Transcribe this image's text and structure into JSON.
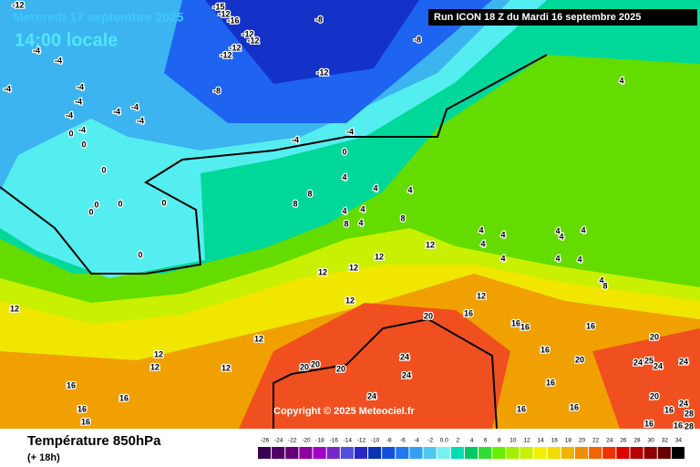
{
  "header": {
    "date": "Mercredi 17 septembre 2025",
    "time": "14:00 locale",
    "run": "Run ICON 18 Z du Mardi 16 septembre 2025"
  },
  "copyright": "Copyright © 2025 Meteociel.fr",
  "footer": {
    "title": "Température 850hPa",
    "lead": "(+ 18h)"
  },
  "map_labels": [
    -12,
    -15,
    -12,
    -16,
    -8,
    -12,
    -12,
    -12,
    -12,
    -8,
    -12,
    -8,
    -4,
    -4,
    -4,
    -4,
    -4,
    -4,
    -4,
    -4,
    -4,
    -4,
    0,
    0,
    0,
    -4,
    -4,
    0,
    4,
    4,
    8,
    8,
    4,
    4,
    4,
    4,
    4,
    8,
    8,
    0,
    0,
    0,
    0,
    0,
    12,
    4,
    4,
    4,
    4,
    4,
    4,
    4,
    4,
    4,
    4,
    8,
    12,
    12,
    12,
    12,
    12,
    16,
    20,
    16,
    16,
    16,
    16,
    20,
    20,
    12,
    12,
    12,
    12,
    12,
    20,
    20,
    20,
    24,
    24,
    16,
    16,
    16,
    16,
    24,
    16,
    16,
    16,
    16,
    16,
    24,
    25,
    24,
    24,
    20,
    24,
    16,
    28,
    28
  ],
  "scale": {
    "values": [
      -26,
      -24,
      -22,
      -20,
      -18,
      -16,
      -14,
      -12,
      -10,
      -8,
      -6,
      -4,
      -2,
      {
        "value": 0,
        "label": "0.0"
      },
      2,
      4,
      6,
      8,
      10,
      12,
      14,
      16,
      18,
      20,
      22,
      24,
      26,
      28,
      30,
      32,
      34
    ],
    "colors": [
      "#3c0050",
      "#500064",
      "#640078",
      "#8c00a0",
      "#a000c8",
      "#7828c8",
      "#5050dc",
      "#2828c8",
      "#0a32b4",
      "#1450dc",
      "#1e78f0",
      "#32a0f0",
      "#50c8f0",
      "#78f0f0",
      "#00dcb4",
      "#00c864",
      "#32dc32",
      "#64f000",
      "#a0f000",
      "#c8f000",
      "#f0f000",
      "#f0dc00",
      "#f0b400",
      "#f08c00",
      "#f06400",
      "#f03200",
      "#dc0000",
      "#b40000",
      "#8c0000",
      "#640000",
      "#000000"
    ]
  }
}
